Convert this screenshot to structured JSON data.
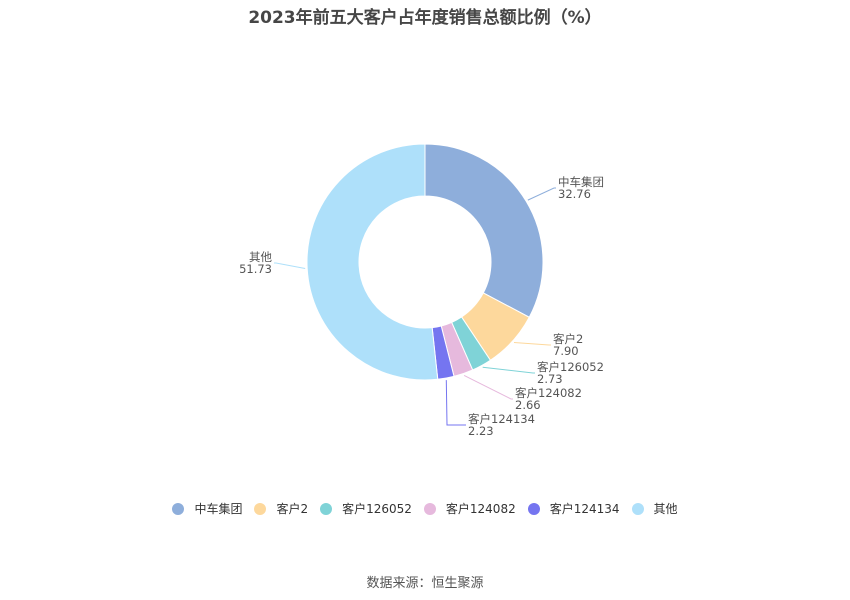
{
  "title": "2023年前五大客户占年度销售总额比例（%）",
  "source": "数据来源：恒生聚源",
  "chart_data": {
    "type": "pie",
    "title": "2023年前五大客户占年度销售总额比例（%）",
    "donut": true,
    "legend_position": "bottom",
    "slices": [
      {
        "name": "中车集团",
        "value": 32.76,
        "value_label": "32.76",
        "color": "#8eaedb"
      },
      {
        "name": "客户2",
        "value": 7.9,
        "value_label": "7.90",
        "color": "#fdd89c"
      },
      {
        "name": "客户126052",
        "value": 2.73,
        "value_label": "2.73",
        "color": "#7fd3d7"
      },
      {
        "name": "客户124082",
        "value": 2.66,
        "value_label": "2.66",
        "color": "#e6b9dd"
      },
      {
        "name": "客户124134",
        "value": 2.23,
        "value_label": "2.23",
        "color": "#7575f0"
      },
      {
        "name": "其他",
        "value": 51.73,
        "value_label": "51.73",
        "color": "#aee0fa"
      }
    ]
  }
}
